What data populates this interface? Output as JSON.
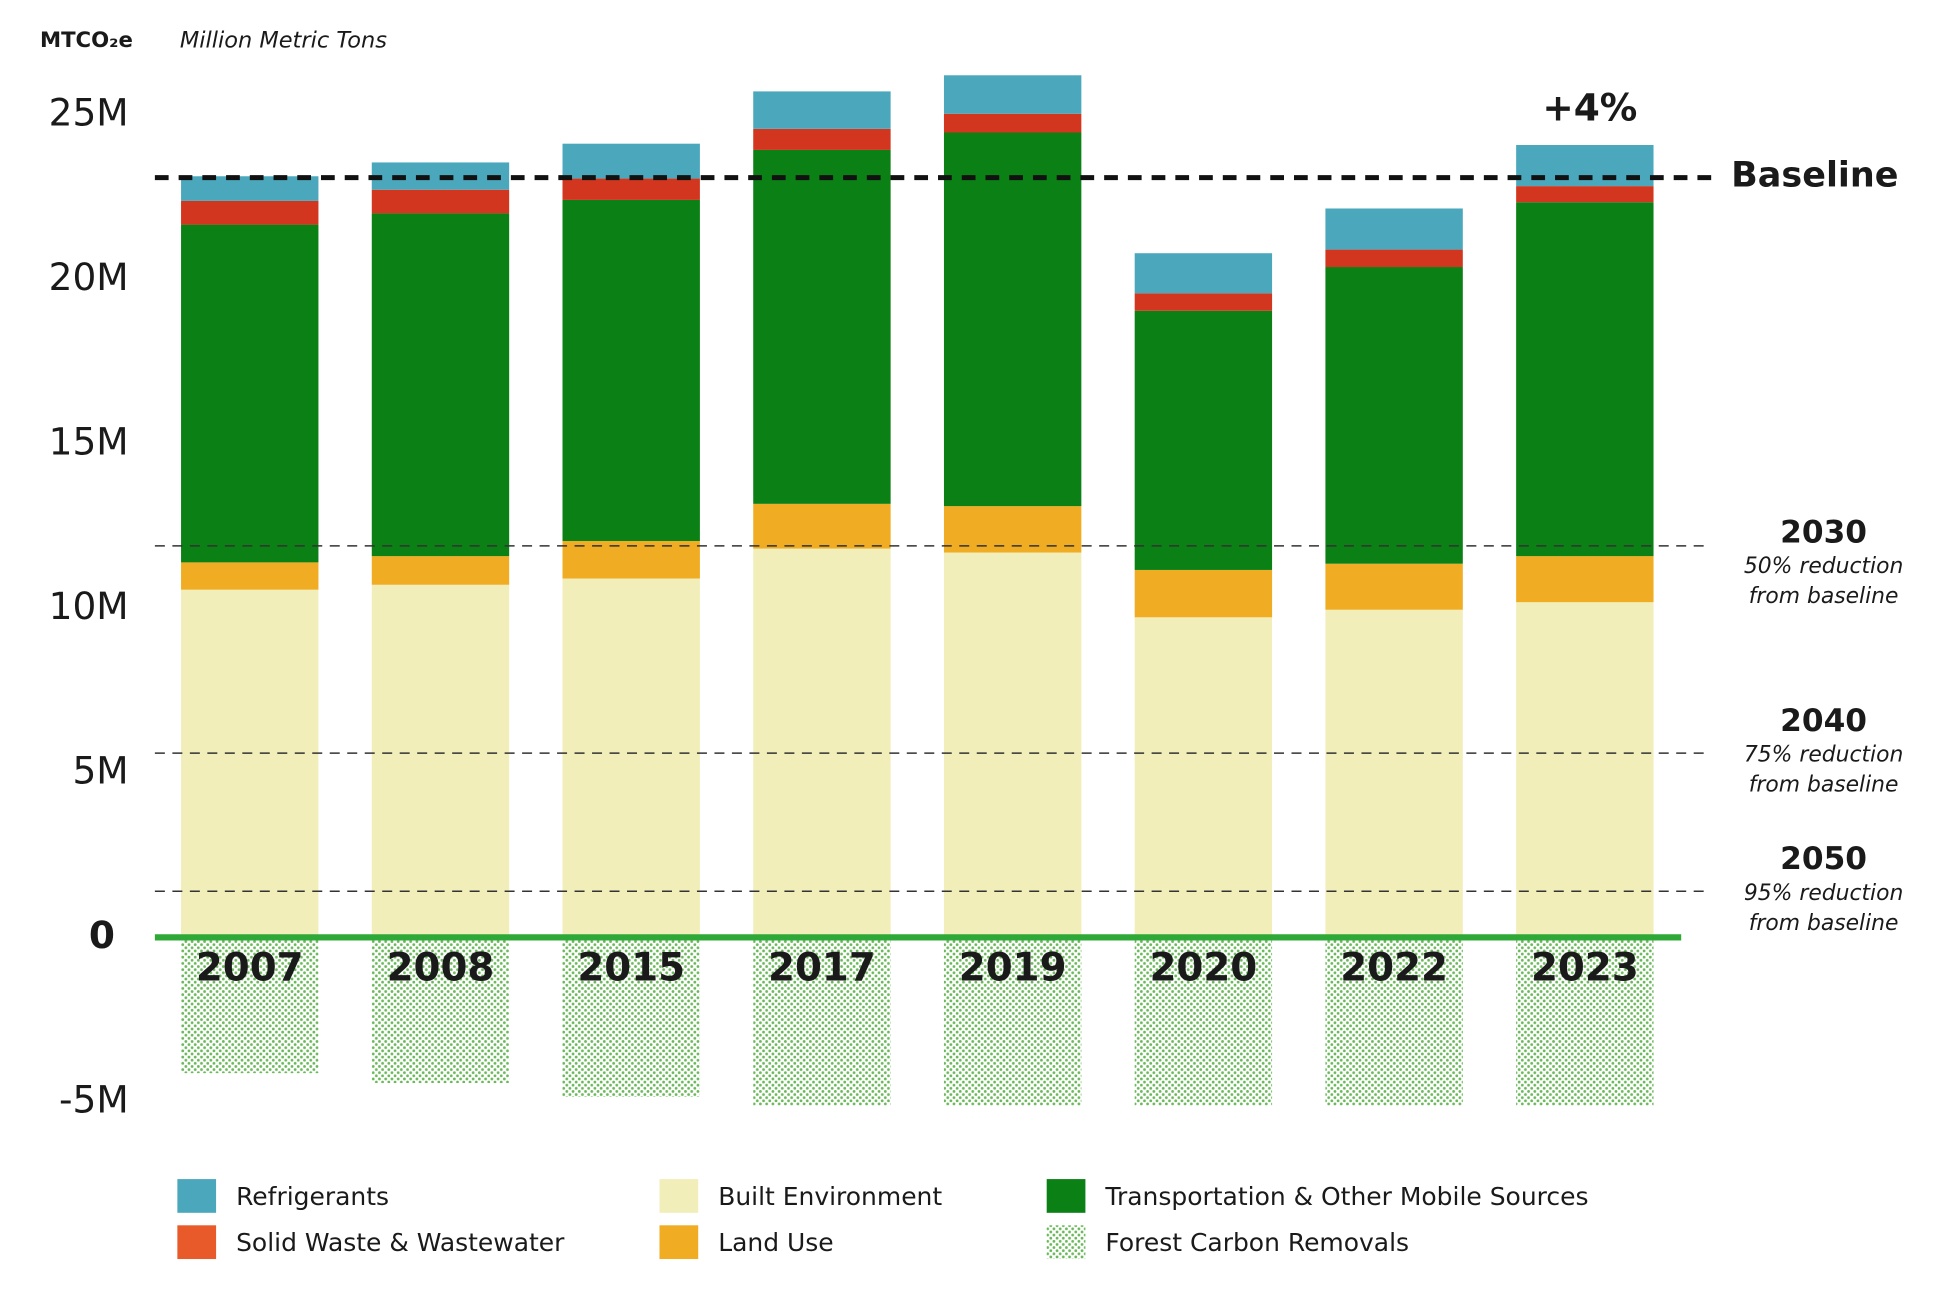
{
  "chart_data": {
    "type": "stacked-bar",
    "unit_label": "MTCO₂e",
    "unit_text": "Million Metric Tons",
    "categories": [
      "2007",
      "2008",
      "2015",
      "2017",
      "2019",
      "2020",
      "2022",
      "2023"
    ],
    "series": [
      {
        "name": "Built Environment",
        "color": "#f2eeb9",
        "values": [
          10.57,
          10.72,
          10.91,
          11.82,
          11.7,
          9.73,
          9.96,
          10.19
        ]
      },
      {
        "name": "Land Use",
        "color": "#f0ac22",
        "values": [
          0.83,
          0.87,
          1.14,
          1.36,
          1.41,
          1.44,
          1.4,
          1.4
        ]
      },
      {
        "name": "Transportation & Other Mobile Sources",
        "color": "#0a8015",
        "values": [
          10.27,
          10.42,
          10.37,
          10.76,
          11.36,
          7.88,
          9.02,
          10.76
        ]
      },
      {
        "name": "Solid Waste & Wastewater",
        "color": "#d2361f",
        "values": [
          0.72,
          0.72,
          0.65,
          0.64,
          0.57,
          0.53,
          0.53,
          0.49
        ]
      },
      {
        "name": "Refrigerants",
        "color": "#4ba8bc",
        "values": [
          0.75,
          0.83,
          1.06,
          1.14,
          1.17,
          1.22,
          1.25,
          1.25
        ]
      },
      {
        "name": "Forest Carbon Removals",
        "color": "#6ab85a",
        "values": [
          -4.13,
          -4.43,
          -4.85,
          -5.11,
          -5.11,
          -5.11,
          -5.11,
          -5.11
        ]
      }
    ],
    "ylim": [
      -5.3,
      26.6
    ],
    "yticks": [
      {
        "value": 25,
        "label": "25M"
      },
      {
        "value": 20,
        "label": "20M"
      },
      {
        "value": 15,
        "label": "15M"
      },
      {
        "value": 10,
        "label": "10M"
      },
      {
        "value": 5,
        "label": "5M"
      },
      0,
      {
        "value": -5,
        "label": "-5M"
      }
    ],
    "baseline": {
      "label": "Baseline",
      "value": 23.1
    },
    "change_annotation": "+4%",
    "targets": [
      {
        "year": "2030",
        "value": 11.9,
        "text": [
          "50% reduction",
          "from baseline"
        ]
      },
      {
        "year": "2040",
        "value": 5.6,
        "text": [
          "75% reduction",
          "from baseline"
        ]
      },
      {
        "year": "2050",
        "value": 1.4,
        "text": [
          "95% reduction",
          "from baseline"
        ]
      }
    ],
    "zero_color": "#2ea836",
    "target_color": "#2ea836"
  }
}
